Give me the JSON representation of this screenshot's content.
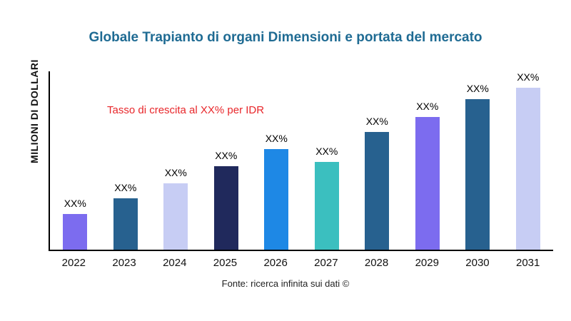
{
  "title": "Globale Trapianto di organi Dimensioni e portata del mercato",
  "ylabel": "MILIONI DI DOLLARI",
  "annotation": "Tasso di crescita al XX% per IDR",
  "source": "Fonte: ricerca infinita sui dati ©",
  "colors": {
    "title": "#1f6b93",
    "annotation": "#e8262a",
    "axis": "#000000"
  },
  "chart_data": {
    "type": "bar",
    "title": "Globale Trapianto di organi Dimensioni e portata del mercato",
    "xlabel": "",
    "ylabel": "MILIONI DI DOLLARI",
    "categories": [
      "2022",
      "2023",
      "2024",
      "2025",
      "2026",
      "2027",
      "2028",
      "2029",
      "2030",
      "2031"
    ],
    "values": [
      50,
      71,
      92,
      116,
      140,
      122,
      164,
      185,
      209,
      231
    ],
    "bar_labels": [
      "XX%",
      "XX%",
      "XX%",
      "XX%",
      "XX%",
      "XX%",
      "XX%",
      "XX%",
      "XX%",
      "XX%"
    ],
    "bar_colors": [
      "#7c6cef",
      "#27618f",
      "#c7cdf4",
      "#20295c",
      "#1e88e5",
      "#3bbfbf",
      "#27618f",
      "#7c6cef",
      "#27618f",
      "#c7cdf4"
    ],
    "ylim": [
      0,
      250
    ],
    "grid": false,
    "legend": "none",
    "annotation": "Tasso di crescita al XX% per IDR"
  }
}
